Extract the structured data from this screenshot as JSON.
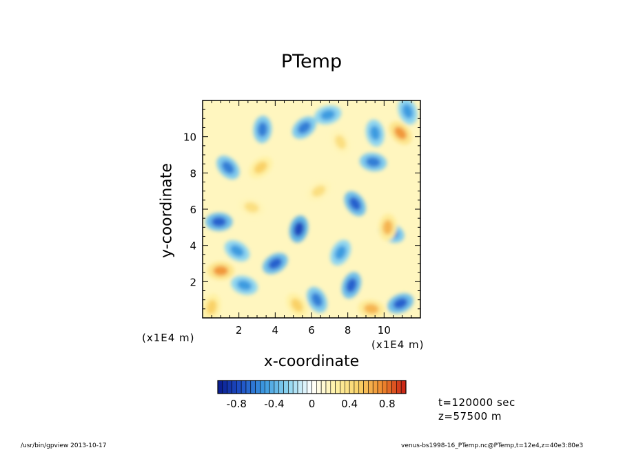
{
  "chart_data": {
    "type": "heatmap",
    "title": "PTemp",
    "xlabel": "x-coordinate",
    "ylabel": "y-coordinate",
    "x_scale_label": "(x1E4 m)",
    "y_scale_label": "(x1E4 m)",
    "xlim": [
      0,
      12
    ],
    "ylim": [
      0,
      12
    ],
    "x_ticks": [
      "2",
      "4",
      "6",
      "8",
      "10"
    ],
    "y_ticks": [
      "2",
      "4",
      "6",
      "8",
      "10"
    ],
    "x_tick_values": [
      2,
      4,
      6,
      8,
      10
    ],
    "y_tick_values": [
      2,
      4,
      6,
      8,
      10
    ],
    "colorbar": {
      "min": -1.0,
      "max": 1.0,
      "levels": 40,
      "tick_values": [
        -0.8,
        -0.4,
        0,
        0.4,
        0.8
      ],
      "tick_labels": [
        "-0.8",
        "-0.4",
        "0",
        "0.4",
        "0.8"
      ],
      "colors": [
        "#0a1a8c",
        "#1f52c8",
        "#3d9be0",
        "#8fd6f0",
        "#ffffff",
        "#fff2a6",
        "#f9d268",
        "#ef8a2e",
        "#c81e14"
      ]
    },
    "cold_anomalies": [
      {
        "x": 0.9,
        "y": 5.3,
        "v": -0.7
      },
      {
        "x": 1.4,
        "y": 8.3,
        "v": -0.6
      },
      {
        "x": 3.3,
        "y": 10.4,
        "v": -0.6
      },
      {
        "x": 5.6,
        "y": 10.5,
        "v": -0.6
      },
      {
        "x": 9.4,
        "y": 8.6,
        "v": -0.6
      },
      {
        "x": 8.4,
        "y": 6.3,
        "v": -0.7
      },
      {
        "x": 5.3,
        "y": 4.9,
        "v": -0.8
      },
      {
        "x": 4.0,
        "y": 3.0,
        "v": -0.7
      },
      {
        "x": 2.3,
        "y": 1.8,
        "v": -0.5
      },
      {
        "x": 6.3,
        "y": 1.0,
        "v": -0.6
      },
      {
        "x": 8.2,
        "y": 1.8,
        "v": -0.7
      },
      {
        "x": 10.9,
        "y": 0.8,
        "v": -0.7
      },
      {
        "x": 10.4,
        "y": 4.7,
        "v": -0.6
      },
      {
        "x": 11.3,
        "y": 11.4,
        "v": -0.5
      },
      {
        "x": 7.6,
        "y": 3.6,
        "v": -0.5
      },
      {
        "x": 6.9,
        "y": 11.2,
        "v": -0.5
      },
      {
        "x": 1.9,
        "y": 3.7,
        "v": -0.5
      },
      {
        "x": 9.5,
        "y": 10.2,
        "v": -0.5
      }
    ],
    "warm_anomalies": [
      {
        "x": 1.0,
        "y": 2.6,
        "v": 0.7
      },
      {
        "x": 10.9,
        "y": 10.2,
        "v": 0.7
      },
      {
        "x": 10.2,
        "y": 5.0,
        "v": 0.6
      },
      {
        "x": 3.2,
        "y": 8.3,
        "v": 0.5
      },
      {
        "x": 9.3,
        "y": 0.5,
        "v": 0.6
      },
      {
        "x": 5.2,
        "y": 0.7,
        "v": 0.5
      },
      {
        "x": 0.5,
        "y": 0.6,
        "v": 0.5
      },
      {
        "x": 6.4,
        "y": 7.0,
        "v": 0.4
      },
      {
        "x": 2.7,
        "y": 6.1,
        "v": 0.4
      },
      {
        "x": 7.6,
        "y": 9.7,
        "v": 0.4
      }
    ]
  },
  "annotations": {
    "time": "t=120000 sec",
    "height": "z=57500 m"
  },
  "footer": {
    "left": "/usr/bin/gpview  2013-10-17",
    "right": "venus-bs1998-16_PTemp.nc@PTemp,t=12e4,z=40e3:80e3"
  }
}
